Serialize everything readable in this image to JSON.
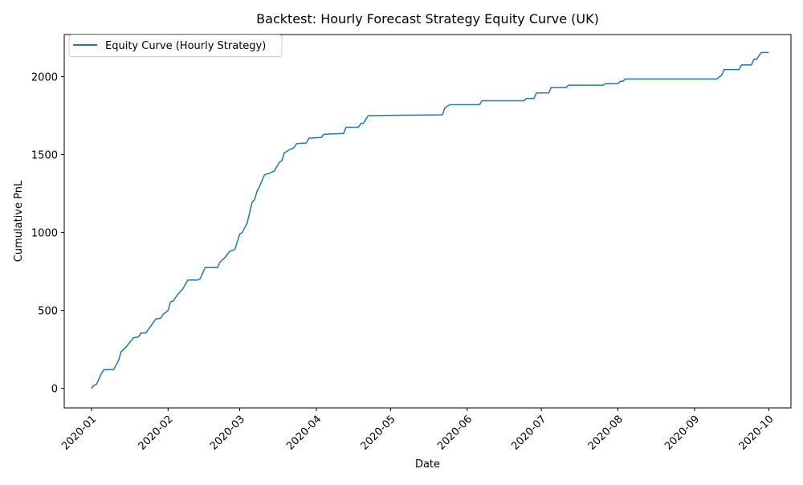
{
  "chart_data": {
    "type": "line",
    "title": "Backtest: Hourly Forecast Strategy Equity Curve (UK)",
    "xlabel": "Date",
    "ylabel": "Cumulative PnL",
    "x_tick_labels": [
      "2020-01",
      "2020-02",
      "2020-03",
      "2020-04",
      "2020-05",
      "2020-06",
      "2020-07",
      "2020-08",
      "2020-09",
      "2020-10"
    ],
    "y_ticks": [
      0,
      500,
      1000,
      1500,
      2000
    ],
    "xlim": [
      "2019-12-21",
      "2020-10-10"
    ],
    "ylim": [
      -125,
      2270
    ],
    "grid": false,
    "legend_position": "upper left",
    "series": [
      {
        "name": "Equity Curve (Hourly Strategy)",
        "color": "#1f77b4",
        "points": [
          [
            "2020-01-01",
            0
          ],
          [
            "2020-01-02",
            20
          ],
          [
            "2020-01-03",
            25
          ],
          [
            "2020-01-04",
            60
          ],
          [
            "2020-01-05",
            95
          ],
          [
            "2020-01-06",
            120
          ],
          [
            "2020-01-10",
            120
          ],
          [
            "2020-01-12",
            180
          ],
          [
            "2020-01-13",
            235
          ],
          [
            "2020-01-15",
            265
          ],
          [
            "2020-01-18",
            325
          ],
          [
            "2020-01-20",
            330
          ],
          [
            "2020-01-21",
            355
          ],
          [
            "2020-01-23",
            355
          ],
          [
            "2020-01-25",
            400
          ],
          [
            "2020-01-27",
            445
          ],
          [
            "2020-01-29",
            450
          ],
          [
            "2020-01-30",
            475
          ],
          [
            "2020-02-01",
            500
          ],
          [
            "2020-02-02",
            555
          ],
          [
            "2020-02-03",
            560
          ],
          [
            "2020-02-05",
            605
          ],
          [
            "2020-02-07",
            640
          ],
          [
            "2020-02-09",
            695
          ],
          [
            "2020-02-13",
            695
          ],
          [
            "2020-02-14",
            705
          ],
          [
            "2020-02-16",
            775
          ],
          [
            "2020-02-21",
            775
          ],
          [
            "2020-02-22",
            810
          ],
          [
            "2020-02-24",
            840
          ],
          [
            "2020-02-26",
            880
          ],
          [
            "2020-02-28",
            890
          ],
          [
            "2020-03-01",
            990
          ],
          [
            "2020-03-02",
            1000
          ],
          [
            "2020-03-04",
            1060
          ],
          [
            "2020-03-06",
            1195
          ],
          [
            "2020-03-07",
            1210
          ],
          [
            "2020-03-08",
            1265
          ],
          [
            "2020-03-09",
            1295
          ],
          [
            "2020-03-11",
            1370
          ],
          [
            "2020-03-13",
            1380
          ],
          [
            "2020-03-15",
            1395
          ],
          [
            "2020-03-17",
            1450
          ],
          [
            "2020-03-18",
            1460
          ],
          [
            "2020-03-19",
            1510
          ],
          [
            "2020-03-21",
            1530
          ],
          [
            "2020-03-23",
            1545
          ],
          [
            "2020-03-24",
            1570
          ],
          [
            "2020-03-28",
            1575
          ],
          [
            "2020-03-29",
            1605
          ],
          [
            "2020-04-03",
            1610
          ],
          [
            "2020-04-04",
            1630
          ],
          [
            "2020-04-12",
            1635
          ],
          [
            "2020-04-13",
            1675
          ],
          [
            "2020-04-18",
            1675
          ],
          [
            "2020-04-19",
            1700
          ],
          [
            "2020-04-20",
            1700
          ],
          [
            "2020-04-22",
            1750
          ],
          [
            "2020-05-22",
            1755
          ],
          [
            "2020-05-23",
            1800
          ],
          [
            "2020-05-25",
            1820
          ],
          [
            "2020-06-06",
            1820
          ],
          [
            "2020-06-07",
            1845
          ],
          [
            "2020-06-24",
            1845
          ],
          [
            "2020-06-25",
            1860
          ],
          [
            "2020-06-28",
            1860
          ],
          [
            "2020-06-29",
            1895
          ],
          [
            "2020-07-04",
            1895
          ],
          [
            "2020-07-05",
            1930
          ],
          [
            "2020-07-11",
            1930
          ],
          [
            "2020-07-12",
            1945
          ],
          [
            "2020-07-26",
            1945
          ],
          [
            "2020-07-27",
            1955
          ],
          [
            "2020-08-01",
            1955
          ],
          [
            "2020-08-02",
            1970
          ],
          [
            "2020-08-03",
            1970
          ],
          [
            "2020-08-04",
            1985
          ],
          [
            "2020-09-10",
            1985
          ],
          [
            "2020-09-12",
            2010
          ],
          [
            "2020-09-13",
            2045
          ],
          [
            "2020-09-19",
            2045
          ],
          [
            "2020-09-20",
            2075
          ],
          [
            "2020-09-24",
            2075
          ],
          [
            "2020-09-25",
            2110
          ],
          [
            "2020-09-26",
            2110
          ],
          [
            "2020-09-28",
            2155
          ],
          [
            "2020-10-01",
            2155
          ]
        ]
      }
    ]
  }
}
